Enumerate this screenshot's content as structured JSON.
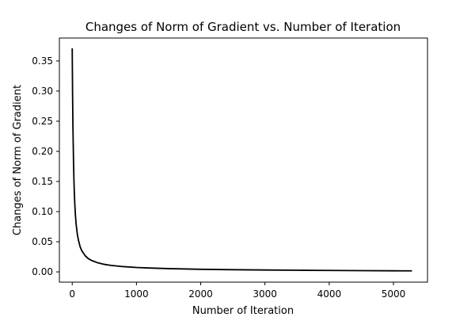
{
  "chart_data": {
    "type": "line",
    "title": "Changes of Norm of Gradient vs. Number of Iteration",
    "xlabel": "Number of Iteration",
    "ylabel": "Changes of Norm of Gradient",
    "xlim": [
      -200,
      5530
    ],
    "ylim": [
      -0.017,
      0.388
    ],
    "xticks": [
      0,
      1000,
      2000,
      3000,
      4000,
      5000
    ],
    "xtick_labels": [
      "0",
      "1000",
      "2000",
      "3000",
      "4000",
      "5000"
    ],
    "yticks": [
      0.0,
      0.05,
      0.1,
      0.15,
      0.2,
      0.25,
      0.3,
      0.35
    ],
    "ytick_labels": [
      "0.00",
      "0.05",
      "0.10",
      "0.15",
      "0.20",
      "0.25",
      "0.30",
      "0.35"
    ],
    "grid": false,
    "legend": "none",
    "series": [
      {
        "color": "#000000",
        "x": [
          0,
          5,
          10,
          15,
          20,
          25,
          30,
          40,
          50,
          60,
          80,
          100,
          125,
          150,
          200,
          250,
          300,
          400,
          500,
          600,
          800,
          1000,
          1200,
          1500,
          2000,
          2500,
          3000,
          3500,
          4000,
          4500,
          5000,
          5280
        ],
        "y": [
          0.37,
          0.3,
          0.25,
          0.215,
          0.185,
          0.16,
          0.14,
          0.112,
          0.094,
          0.08,
          0.062,
          0.051,
          0.041,
          0.035,
          0.027,
          0.022,
          0.019,
          0.015,
          0.0125,
          0.0108,
          0.0087,
          0.0073,
          0.0064,
          0.0054,
          0.0043,
          0.0036,
          0.0031,
          0.0027,
          0.0024,
          0.0021,
          0.0018,
          0.0017
        ]
      }
    ]
  }
}
